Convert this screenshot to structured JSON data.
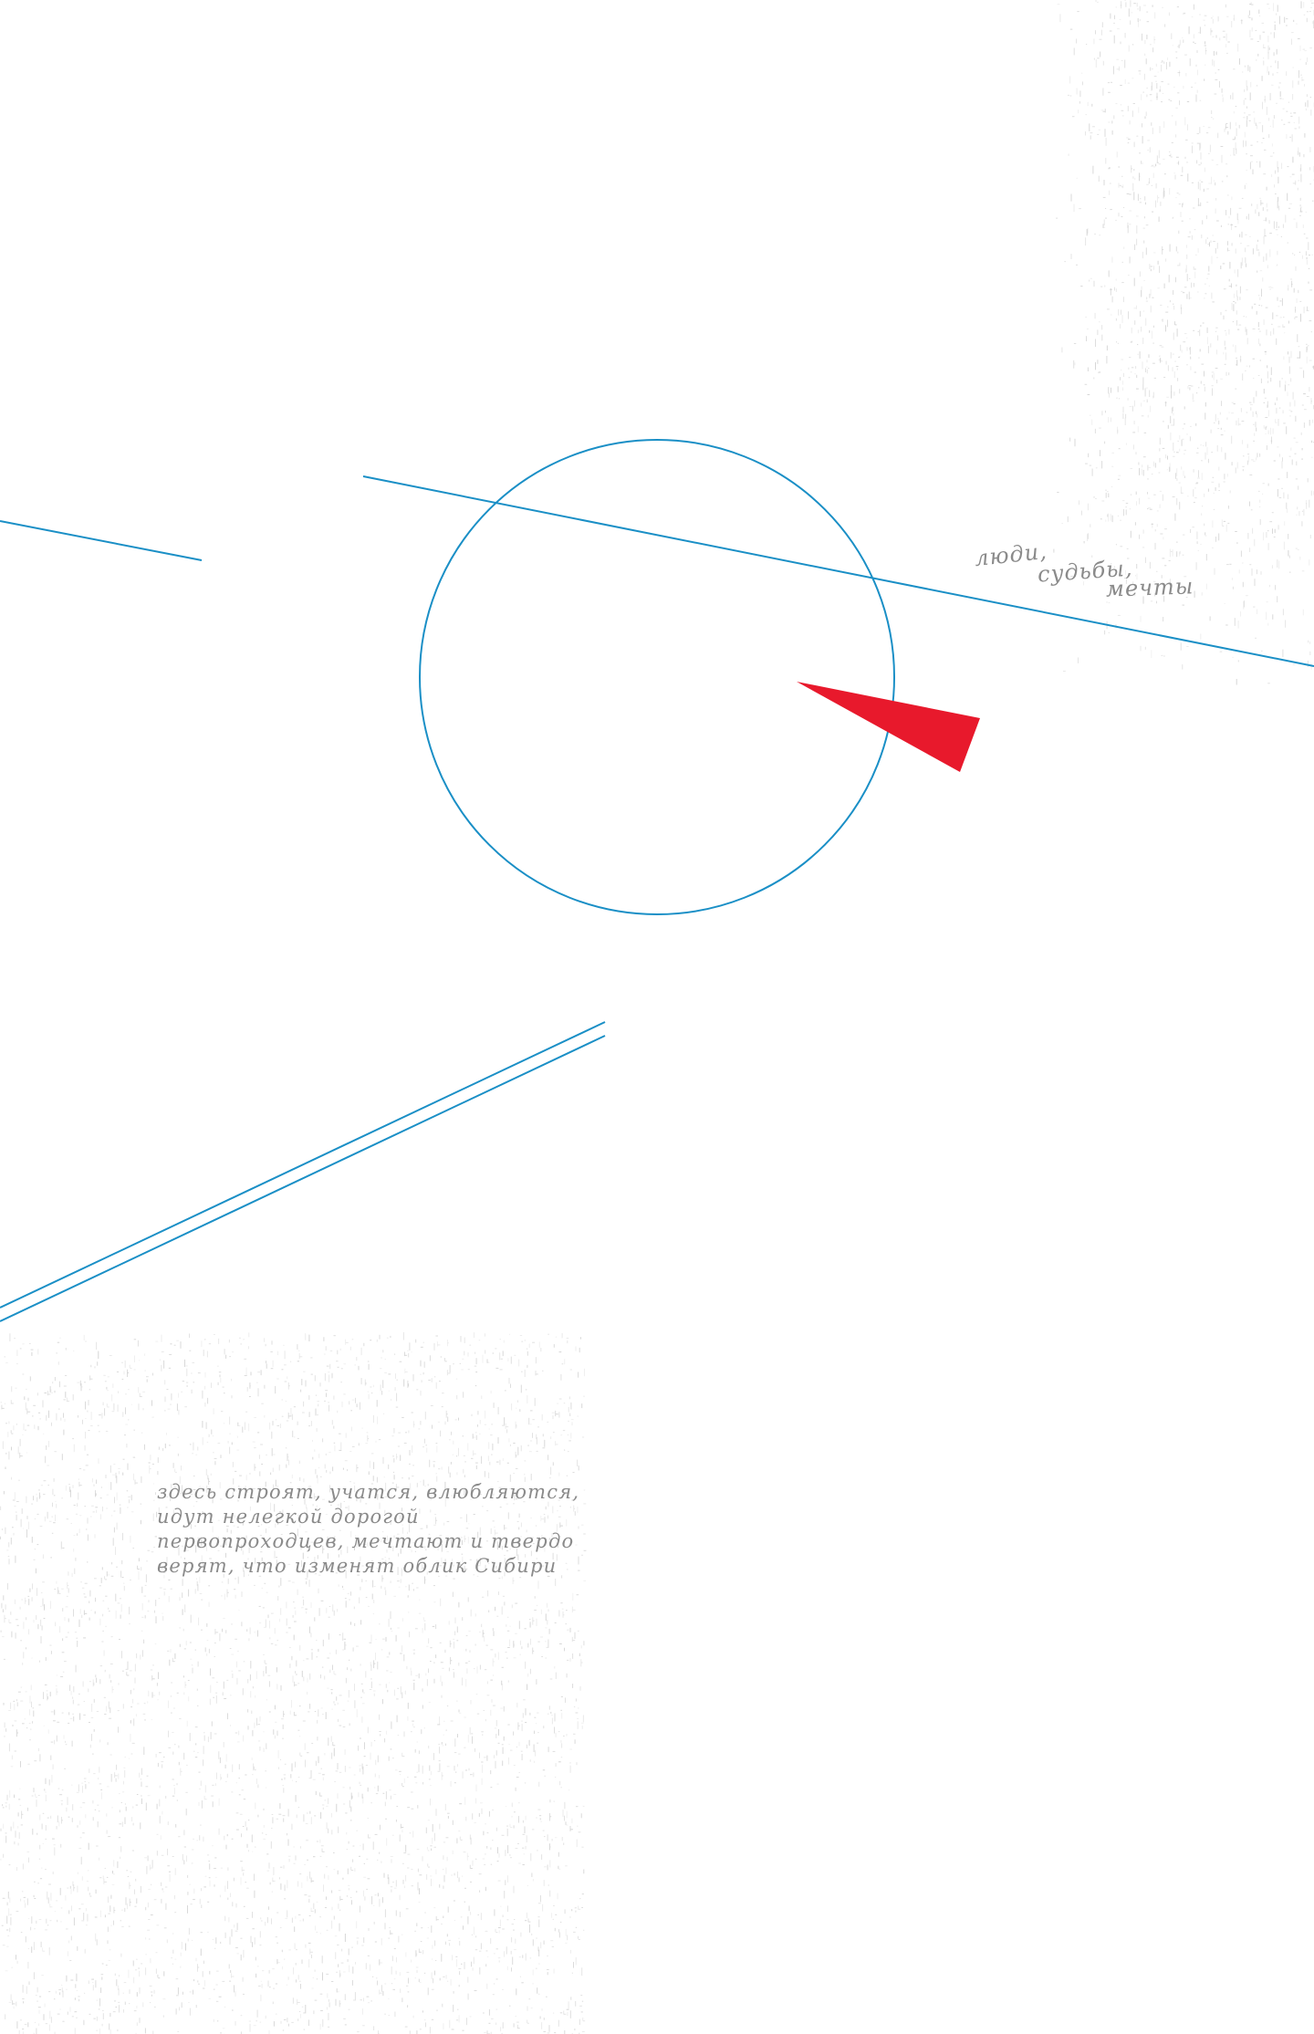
{
  "colors": {
    "background": "#ffffff",
    "line_blue": "#1a8fc6",
    "accent_red": "#e8192c",
    "text_gray": "#8a8a8a",
    "texture_gray": "#c9c9c9"
  },
  "top_phrase": {
    "word_1": "люди,",
    "word_2": "судьбы,",
    "word_3": "мечты"
  },
  "caption": {
    "lines": [
      "здесь строят, учатся, влюбляются,",
      "идут нелегкой дорогой",
      "первопроходцев, мечтают и твердо",
      "верят, что изменят облик Сибири"
    ]
  }
}
